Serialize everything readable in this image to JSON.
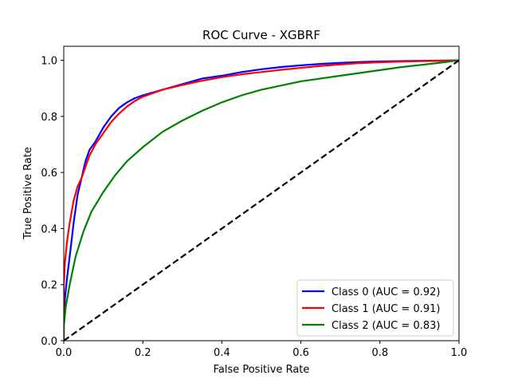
{
  "chart_data": {
    "type": "line",
    "title": "ROC Curve - XGBRF",
    "xlabel": "False Positive Rate",
    "ylabel": "True Positive Rate",
    "xlim": [
      0,
      1
    ],
    "ylim": [
      0,
      1.05
    ],
    "xticks": [
      "0.0",
      "0.2",
      "0.4",
      "0.6",
      "0.8",
      "1.0"
    ],
    "yticks": [
      "0.0",
      "0.2",
      "0.4",
      "0.6",
      "0.8",
      "1.0"
    ],
    "grid": false,
    "legend_position": "lower-right",
    "series": [
      {
        "name": "Class 0 (AUC = 0.92)",
        "color": "#0000ff",
        "points": [
          [
            0,
            0
          ],
          [
            0,
            0.08
          ],
          [
            0.003,
            0.15
          ],
          [
            0.008,
            0.22
          ],
          [
            0.015,
            0.3
          ],
          [
            0.025,
            0.42
          ],
          [
            0.035,
            0.52
          ],
          [
            0.045,
            0.58
          ],
          [
            0.055,
            0.64
          ],
          [
            0.065,
            0.68
          ],
          [
            0.08,
            0.71
          ],
          [
            0.1,
            0.76
          ],
          [
            0.12,
            0.8
          ],
          [
            0.14,
            0.83
          ],
          [
            0.16,
            0.85
          ],
          [
            0.18,
            0.865
          ],
          [
            0.2,
            0.875
          ],
          [
            0.25,
            0.895
          ],
          [
            0.3,
            0.915
          ],
          [
            0.35,
            0.935
          ],
          [
            0.4,
            0.945
          ],
          [
            0.45,
            0.958
          ],
          [
            0.5,
            0.968
          ],
          [
            0.55,
            0.976
          ],
          [
            0.6,
            0.982
          ],
          [
            0.65,
            0.987
          ],
          [
            0.7,
            0.991
          ],
          [
            0.75,
            0.994
          ],
          [
            0.8,
            0.996
          ],
          [
            0.85,
            0.997
          ],
          [
            0.9,
            0.998
          ],
          [
            0.95,
            0.999
          ],
          [
            1,
            1
          ]
        ]
      },
      {
        "name": "Class 1 (AUC = 0.91)",
        "color": "#ff0000",
        "points": [
          [
            0,
            0
          ],
          [
            0,
            0.2
          ],
          [
            0.003,
            0.28
          ],
          [
            0.008,
            0.35
          ],
          [
            0.015,
            0.42
          ],
          [
            0.025,
            0.5
          ],
          [
            0.035,
            0.55
          ],
          [
            0.045,
            0.58
          ],
          [
            0.055,
            0.62
          ],
          [
            0.065,
            0.66
          ],
          [
            0.08,
            0.7
          ],
          [
            0.1,
            0.74
          ],
          [
            0.12,
            0.78
          ],
          [
            0.14,
            0.81
          ],
          [
            0.16,
            0.835
          ],
          [
            0.18,
            0.855
          ],
          [
            0.2,
            0.87
          ],
          [
            0.25,
            0.895
          ],
          [
            0.3,
            0.912
          ],
          [
            0.35,
            0.927
          ],
          [
            0.4,
            0.94
          ],
          [
            0.45,
            0.95
          ],
          [
            0.5,
            0.958
          ],
          [
            0.55,
            0.966
          ],
          [
            0.6,
            0.973
          ],
          [
            0.65,
            0.98
          ],
          [
            0.7,
            0.985
          ],
          [
            0.75,
            0.99
          ],
          [
            0.8,
            0.993
          ],
          [
            0.85,
            0.995
          ],
          [
            0.9,
            0.997
          ],
          [
            0.95,
            0.998
          ],
          [
            1,
            1
          ]
        ]
      },
      {
        "name": "Class 2 (AUC = 0.83)",
        "color": "#008000",
        "points": [
          [
            0,
            0
          ],
          [
            0,
            0.05
          ],
          [
            0.005,
            0.12
          ],
          [
            0.015,
            0.2
          ],
          [
            0.03,
            0.3
          ],
          [
            0.05,
            0.39
          ],
          [
            0.07,
            0.46
          ],
          [
            0.1,
            0.53
          ],
          [
            0.13,
            0.59
          ],
          [
            0.16,
            0.64
          ],
          [
            0.2,
            0.69
          ],
          [
            0.25,
            0.745
          ],
          [
            0.3,
            0.785
          ],
          [
            0.35,
            0.82
          ],
          [
            0.4,
            0.85
          ],
          [
            0.45,
            0.875
          ],
          [
            0.5,
            0.895
          ],
          [
            0.55,
            0.91
          ],
          [
            0.6,
            0.925
          ],
          [
            0.65,
            0.935
          ],
          [
            0.7,
            0.945
          ],
          [
            0.75,
            0.955
          ],
          [
            0.8,
            0.965
          ],
          [
            0.85,
            0.975
          ],
          [
            0.9,
            0.983
          ],
          [
            0.95,
            0.991
          ],
          [
            1,
            1
          ]
        ]
      }
    ],
    "reference_line": {
      "style": "dashed",
      "color": "#000000",
      "points": [
        [
          0,
          0
        ],
        [
          1,
          1
        ]
      ]
    }
  }
}
